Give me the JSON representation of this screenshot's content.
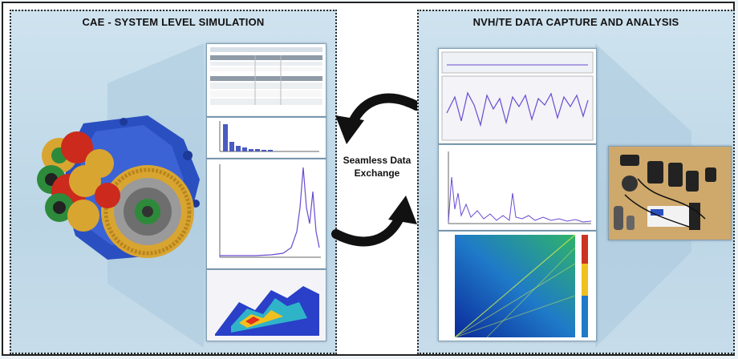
{
  "panels": {
    "left_title": "CAE - SYSTEM LEVEL SIMULATION",
    "right_title": "NVH/TE DATA CAPTURE AND ANALYSIS"
  },
  "center": {
    "line1": "Seamless Data",
    "line2": "Exchange"
  },
  "colors": {
    "panel_bg": "#c3dbe9",
    "arrow": "#111111",
    "gearbox_housing": "#2a4fc0",
    "gear_gold": "#d9a531",
    "gear_red": "#cc2a1c",
    "gear_green": "#2d8a3a",
    "trace_purple": "#6a4bd0"
  },
  "icons": {
    "arrow_top": "curved-arrow-left-icon",
    "arrow_bottom": "curved-arrow-right-icon"
  }
}
